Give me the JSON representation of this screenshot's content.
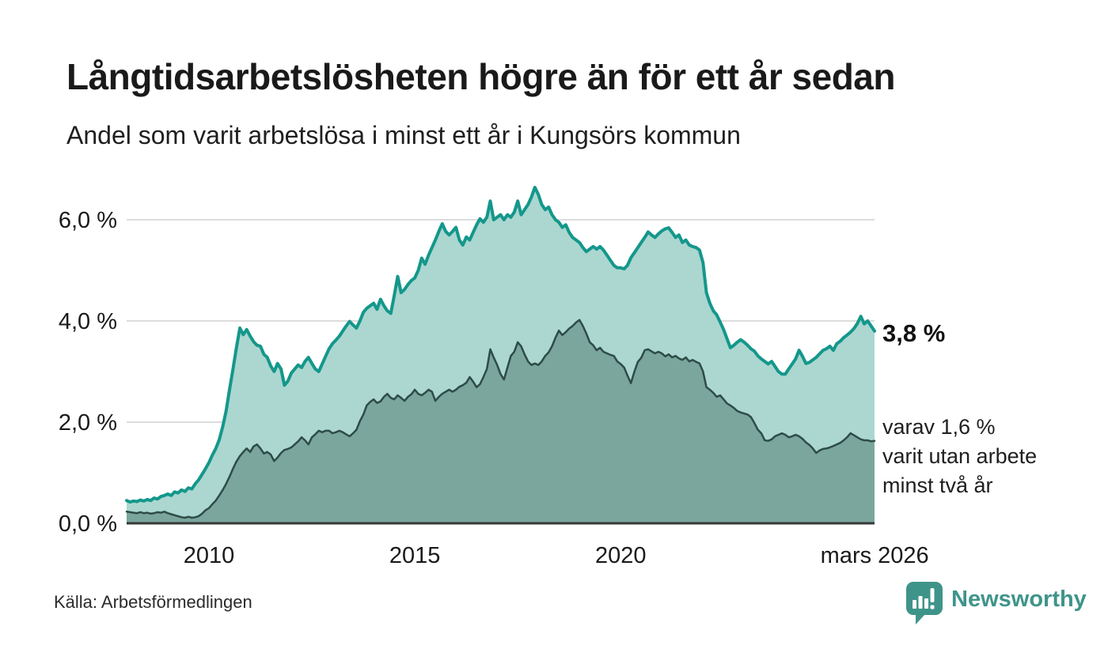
{
  "header": {
    "title": "Långtidsarbetslösheten högre än för ett år sedan",
    "subtitle": "Andel som varit arbetslösa i minst ett år i Kungsörs kommun"
  },
  "chart_data": {
    "type": "area",
    "title": "Långtidsarbetslösheten högre än för ett år sedan",
    "subtitle": "Andel som varit arbetslösa i minst ett år i Kungsörs kommun",
    "unit": "%",
    "x_interval": "monthly",
    "x_range": [
      "2008-01",
      "2026-03"
    ],
    "grid": true,
    "ylim": [
      0,
      6.8
    ],
    "y_ticks": [
      {
        "value": 0,
        "label": "0,0 %"
      },
      {
        "value": 2,
        "label": "2,0 %"
      },
      {
        "value": 4,
        "label": "4,0 %"
      },
      {
        "value": 6,
        "label": "6,0 %"
      }
    ],
    "x_ticks": [
      {
        "year": 2010,
        "label": "2010"
      },
      {
        "year": 2015,
        "label": "2015"
      },
      {
        "year": 2020,
        "label": "2020"
      },
      {
        "year": 2026.17,
        "label": "mars 2026"
      }
    ],
    "colors": {
      "grid": "#dcdcdc",
      "axis": "#383838"
    },
    "series": [
      {
        "name": "Andel som varit arbetslösa i minst ett år",
        "color": "#14978b",
        "fill": "#abd7d0",
        "stroke_width": 4,
        "values": [
          0.45,
          0.42,
          0.44,
          0.43,
          0.46,
          0.44,
          0.47,
          0.45,
          0.5,
          0.48,
          0.53,
          0.55,
          0.58,
          0.55,
          0.62,
          0.6,
          0.66,
          0.63,
          0.7,
          0.68,
          0.78,
          0.86,
          0.97,
          1.08,
          1.2,
          1.35,
          1.48,
          1.65,
          1.91,
          2.22,
          2.64,
          3.05,
          3.47,
          3.86,
          3.73,
          3.83,
          3.7,
          3.59,
          3.52,
          3.5,
          3.34,
          3.28,
          3.11,
          3.0,
          3.16,
          3.05,
          2.73,
          2.81,
          2.97,
          3.05,
          3.13,
          3.08,
          3.2,
          3.28,
          3.16,
          3.05,
          3.0,
          3.15,
          3.3,
          3.45,
          3.55,
          3.62,
          3.7,
          3.8,
          3.9,
          3.99,
          3.92,
          3.86,
          4.0,
          4.17,
          4.25,
          4.3,
          4.35,
          4.23,
          4.43,
          4.3,
          4.2,
          4.15,
          4.5,
          4.88,
          4.56,
          4.62,
          4.72,
          4.8,
          4.85,
          5.0,
          5.24,
          5.12,
          5.3,
          5.45,
          5.6,
          5.77,
          5.92,
          5.77,
          5.7,
          5.77,
          5.85,
          5.6,
          5.5,
          5.66,
          5.6,
          5.75,
          5.9,
          6.02,
          5.95,
          6.05,
          6.37,
          6.0,
          6.05,
          6.1,
          6.0,
          6.1,
          6.05,
          6.15,
          6.37,
          6.1,
          6.2,
          6.3,
          6.45,
          6.64,
          6.5,
          6.3,
          6.2,
          6.25,
          6.1,
          6.0,
          5.95,
          5.85,
          5.9,
          5.75,
          5.65,
          5.6,
          5.55,
          5.45,
          5.37,
          5.42,
          5.47,
          5.42,
          5.47,
          5.4,
          5.3,
          5.2,
          5.1,
          5.05,
          5.05,
          5.03,
          5.1,
          5.25,
          5.35,
          5.45,
          5.55,
          5.65,
          5.76,
          5.7,
          5.65,
          5.72,
          5.78,
          5.82,
          5.84,
          5.75,
          5.65,
          5.7,
          5.55,
          5.6,
          5.5,
          5.47,
          5.45,
          5.4,
          5.15,
          4.56,
          4.35,
          4.2,
          4.12,
          3.98,
          3.83,
          3.65,
          3.47,
          3.52,
          3.58,
          3.63,
          3.58,
          3.52,
          3.45,
          3.4,
          3.31,
          3.25,
          3.2,
          3.15,
          3.2,
          3.1,
          3.0,
          2.95,
          2.95,
          3.05,
          3.15,
          3.25,
          3.42,
          3.3,
          3.16,
          3.18,
          3.23,
          3.28,
          3.35,
          3.42,
          3.45,
          3.5,
          3.42,
          3.55,
          3.6,
          3.67,
          3.72,
          3.78,
          3.85,
          3.95,
          4.09,
          3.94,
          4.0,
          3.9,
          3.8
        ]
      },
      {
        "name": "Andel som varit utan arbete minst två år",
        "color": "#2e4c47",
        "fill": "#7aa69d",
        "stroke_width": 2.5,
        "values": [
          0.23,
          0.22,
          0.21,
          0.2,
          0.22,
          0.2,
          0.21,
          0.19,
          0.2,
          0.22,
          0.21,
          0.23,
          0.2,
          0.18,
          0.16,
          0.14,
          0.12,
          0.11,
          0.13,
          0.11,
          0.12,
          0.14,
          0.19,
          0.26,
          0.3,
          0.38,
          0.45,
          0.55,
          0.66,
          0.78,
          0.92,
          1.08,
          1.22,
          1.33,
          1.41,
          1.48,
          1.41,
          1.52,
          1.56,
          1.48,
          1.38,
          1.41,
          1.36,
          1.23,
          1.3,
          1.39,
          1.45,
          1.47,
          1.5,
          1.56,
          1.62,
          1.7,
          1.64,
          1.56,
          1.7,
          1.76,
          1.83,
          1.8,
          1.83,
          1.83,
          1.78,
          1.8,
          1.83,
          1.8,
          1.76,
          1.72,
          1.78,
          1.85,
          2.02,
          2.15,
          2.33,
          2.4,
          2.45,
          2.38,
          2.41,
          2.5,
          2.56,
          2.48,
          2.45,
          2.53,
          2.48,
          2.42,
          2.5,
          2.55,
          2.64,
          2.56,
          2.53,
          2.58,
          2.64,
          2.6,
          2.42,
          2.5,
          2.56,
          2.6,
          2.64,
          2.6,
          2.64,
          2.7,
          2.73,
          2.78,
          2.89,
          2.8,
          2.69,
          2.75,
          2.89,
          3.05,
          3.44,
          3.28,
          3.13,
          2.95,
          2.84,
          3.08,
          3.31,
          3.39,
          3.58,
          3.5,
          3.34,
          3.2,
          3.13,
          3.16,
          3.13,
          3.2,
          3.31,
          3.38,
          3.5,
          3.67,
          3.81,
          3.72,
          3.78,
          3.85,
          3.9,
          3.97,
          4.02,
          3.9,
          3.75,
          3.58,
          3.52,
          3.42,
          3.47,
          3.39,
          3.36,
          3.33,
          3.31,
          3.2,
          3.15,
          3.08,
          2.92,
          2.77,
          3.0,
          3.19,
          3.27,
          3.42,
          3.44,
          3.4,
          3.36,
          3.39,
          3.36,
          3.3,
          3.34,
          3.28,
          3.31,
          3.26,
          3.23,
          3.28,
          3.2,
          3.23,
          3.19,
          3.16,
          3.0,
          2.69,
          2.64,
          2.58,
          2.5,
          2.53,
          2.45,
          2.37,
          2.33,
          2.28,
          2.22,
          2.19,
          2.17,
          2.15,
          2.1,
          1.98,
          1.85,
          1.78,
          1.64,
          1.63,
          1.66,
          1.72,
          1.75,
          1.78,
          1.75,
          1.7,
          1.72,
          1.75,
          1.72,
          1.67,
          1.6,
          1.55,
          1.48,
          1.39,
          1.44,
          1.47,
          1.48,
          1.5,
          1.53,
          1.56,
          1.59,
          1.64,
          1.7,
          1.78,
          1.74,
          1.7,
          1.66,
          1.64,
          1.64,
          1.62,
          1.63
        ]
      }
    ],
    "end_labels": {
      "primary": "3,8 %",
      "secondary": [
        "varav 1,6 %",
        "varit utan arbete",
        "minst två år"
      ]
    }
  },
  "footer": {
    "source": "Källa: Arbetsförmedlingen",
    "brand": "Newsworthy",
    "brand_color": "#3f948a"
  }
}
